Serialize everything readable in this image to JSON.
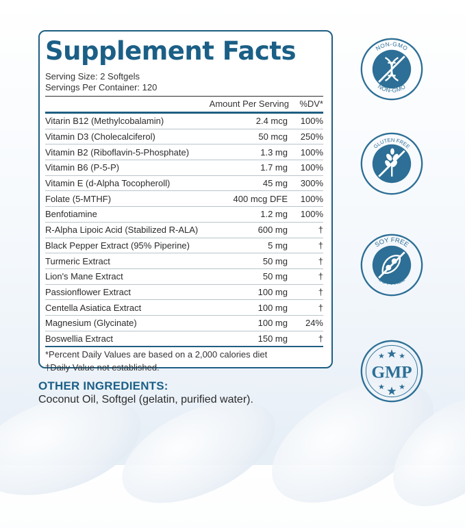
{
  "facts": {
    "title": "Supplement Facts",
    "serving_size": "Serving Size: 2 Softgels",
    "servings_per_container": "Servings Per Container: 120",
    "amount_header": "Amount Per Serving",
    "dv_header": "%DV*",
    "rows": [
      {
        "name": "Vitarin B12 (Methylcobalamin)",
        "amount": "2.4 mcg",
        "dv": "100%"
      },
      {
        "name": "Vitamin D3 (Cholecalciferol)",
        "amount": "50 mcg",
        "dv": "250%"
      },
      {
        "name": "Vitamin B2 (Riboflavin-5-Phosphate)",
        "amount": "1.3 mg",
        "dv": "100%"
      },
      {
        "name": "Vitamin B6 (P-5-P)",
        "amount": "1.7 mg",
        "dv": "100%"
      },
      {
        "name": "Vitamin E (d-Alpha Tocopheroll)",
        "amount": "45 mg",
        "dv": "300%"
      },
      {
        "name": "Folate (5-MTHF)",
        "amount": "400 mcg DFE",
        "dv": "100%"
      },
      {
        "name": "Benfotiamine",
        "amount": "1.2 mg",
        "dv": "100%"
      },
      {
        "name": "R-Alpha Lipoic Acid (Stabilized R-ALA)",
        "amount": "600 mg",
        "dv": "†"
      },
      {
        "name": "Black Pepper Extract (95% Piperine)",
        "amount": "5 mg",
        "dv": "†"
      },
      {
        "name": "Turmeric Extract",
        "amount": "50 mg",
        "dv": "†"
      },
      {
        "name": "Lion's Mane Extract",
        "amount": "50 mg",
        "dv": "†"
      },
      {
        "name": "Passionflower Extract",
        "amount": "100 mg",
        "dv": "†"
      },
      {
        "name": "Centella Asiatica Extract",
        "amount": "100 mg",
        "dv": "†"
      },
      {
        "name": "Magnesium (Glycinate)",
        "amount": "100 mg",
        "dv": "24%"
      },
      {
        "name": "Boswellia Extract",
        "amount": "150 mg",
        "dv": "†"
      }
    ],
    "footnote_1": "*Percent Daily Values are based on a 2,000 calories diet",
    "footnote_2": "†Daily Value not established."
  },
  "other_ingredients": {
    "title": "OTHER INGREDIENTS:",
    "text": "Coconut Oil, Softgel (gelatin, purified water)."
  },
  "badges": {
    "non_gmo": "NON-GMO",
    "gluten_free": "GLUTEN FREE",
    "soy_free": "SOY FREE",
    "gmp": "GMP"
  },
  "colors": {
    "brand": "#1b5f86",
    "badge": "#2d6f96"
  }
}
